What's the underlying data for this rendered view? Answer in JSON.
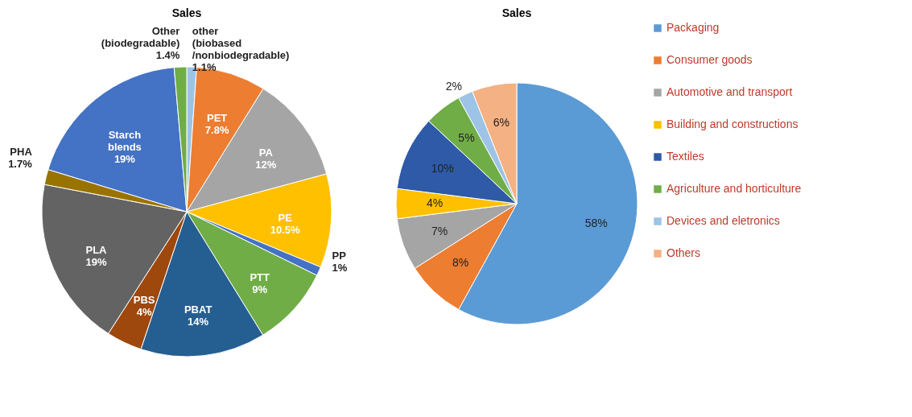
{
  "chart_data": [
    {
      "type": "pie",
      "title": "Sales",
      "categories": [
        "other (biobased/nonbiodegradable)",
        "PET",
        "PA",
        "PE",
        "PP",
        "PTT",
        "PBAT",
        "PBS",
        "PLA",
        "PHA",
        "Starch blends",
        "Other (biodegradable)"
      ],
      "values": [
        1.1,
        7.8,
        12,
        10.5,
        1,
        9,
        14,
        4,
        19,
        1.7,
        19,
        1.4
      ],
      "colors": [
        "#9dc3e6",
        "#ed7d31",
        "#a5a5a5",
        "#ffc000",
        "#4472c4",
        "#70ad47",
        "#255e91",
        "#9e480e",
        "#636363",
        "#997300",
        "#4472c4",
        "#70ad47"
      ],
      "value_labels": [
        "1.1%",
        "7.8%",
        "12%",
        "10.5%",
        "1%",
        "9%",
        "14%",
        "4%",
        "19%",
        "1.7%",
        "19%",
        "1.4%"
      ]
    },
    {
      "type": "pie",
      "title": "Sales",
      "categories": [
        "Packaging",
        "Consumer goods",
        "Automotive and transport",
        "Building and constructions",
        "Textiles",
        "Agriculture and horticulture",
        "Devices and eletronics",
        "Others"
      ],
      "values": [
        58,
        8,
        7,
        4,
        10,
        5,
        2,
        6
      ],
      "colors": [
        "#5b9bd5",
        "#ed7d31",
        "#a5a5a5",
        "#ffc000",
        "#2e5aa8",
        "#70ad47",
        "#9dc3e6",
        "#f4b183"
      ],
      "value_labels": [
        "58%",
        "8%",
        "7%",
        "4%",
        "10%",
        "5%",
        "2%",
        "6%"
      ],
      "legend": "right"
    }
  ]
}
